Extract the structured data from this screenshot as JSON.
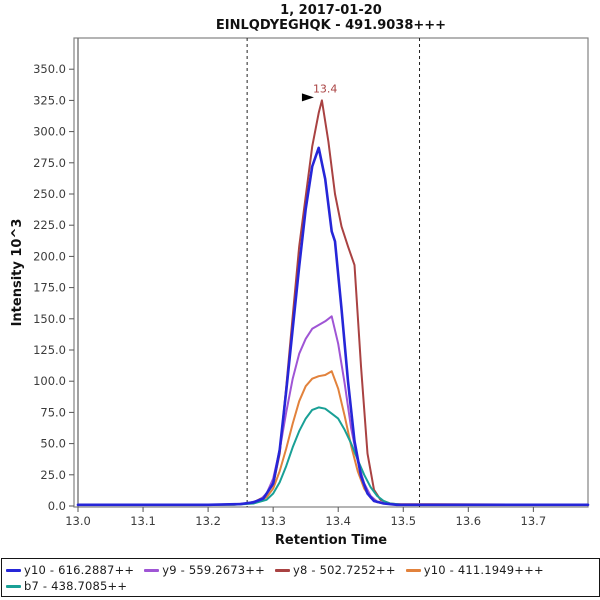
{
  "title": {
    "line1": "1, 2017-01-20",
    "line2": "EINLQDYEGHQK - 491.9038+++"
  },
  "chart_data": {
    "type": "line",
    "title": "1, 2017-01-20",
    "subtitle": "EINLQDYEGHQK - 491.9038+++",
    "xlabel": "Retention Time",
    "ylabel": "Intensity 10^3",
    "xlim": [
      13.0,
      13.784
    ],
    "ylim": [
      0,
      375
    ],
    "x_ticks": [
      13.0,
      13.1,
      13.2,
      13.3,
      13.4,
      13.5,
      13.6,
      13.7
    ],
    "y_ticks": [
      0,
      25,
      50,
      75,
      100,
      125,
      150,
      175,
      200,
      225,
      250,
      275,
      300,
      325,
      350
    ],
    "grid": false,
    "legend_position": "bottom",
    "peak_boundaries": [
      13.26,
      13.525
    ],
    "annotation": {
      "label": "13.4",
      "rt": 13.375,
      "value": 325,
      "color": "#a94242"
    },
    "series": [
      {
        "name": "y10 - 616.2887++",
        "color": "#2626d8",
        "width": 2.6,
        "points": [
          [
            13.0,
            1
          ],
          [
            13.2,
            1
          ],
          [
            13.25,
            1.5
          ],
          [
            13.27,
            3
          ],
          [
            13.285,
            6
          ],
          [
            13.3,
            18
          ],
          [
            13.31,
            45
          ],
          [
            13.32,
            92
          ],
          [
            13.33,
            142
          ],
          [
            13.34,
            192
          ],
          [
            13.35,
            238
          ],
          [
            13.36,
            272
          ],
          [
            13.37,
            287
          ],
          [
            13.38,
            262
          ],
          [
            13.39,
            220
          ],
          [
            13.395,
            212
          ],
          [
            13.405,
            158
          ],
          [
            13.415,
            100
          ],
          [
            13.425,
            52
          ],
          [
            13.435,
            24
          ],
          [
            13.445,
            10
          ],
          [
            13.455,
            4
          ],
          [
            13.47,
            2
          ],
          [
            13.49,
            1
          ],
          [
            13.55,
            1
          ],
          [
            13.784,
            1
          ]
        ]
      },
      {
        "name": "y9 - 559.2673++",
        "color": "#9f55d5",
        "width": 2,
        "points": [
          [
            13.0,
            1
          ],
          [
            13.22,
            1
          ],
          [
            13.26,
            2
          ],
          [
            13.28,
            5
          ],
          [
            13.29,
            10
          ],
          [
            13.3,
            22
          ],
          [
            13.31,
            45
          ],
          [
            13.32,
            75
          ],
          [
            13.33,
            102
          ],
          [
            13.34,
            122
          ],
          [
            13.35,
            134
          ],
          [
            13.36,
            142
          ],
          [
            13.37,
            145
          ],
          [
            13.38,
            148
          ],
          [
            13.39,
            152
          ],
          [
            13.4,
            130
          ],
          [
            13.41,
            98
          ],
          [
            13.42,
            62
          ],
          [
            13.43,
            36
          ],
          [
            13.44,
            18
          ],
          [
            13.45,
            8
          ],
          [
            13.46,
            3.5
          ],
          [
            13.48,
            1.5
          ],
          [
            13.784,
            1
          ]
        ]
      },
      {
        "name": "y8 - 502.7252++",
        "color": "#a94242",
        "width": 2,
        "points": [
          [
            13.0,
            1
          ],
          [
            13.2,
            1
          ],
          [
            13.25,
            1.5
          ],
          [
            13.27,
            3
          ],
          [
            13.285,
            7
          ],
          [
            13.3,
            17
          ],
          [
            13.31,
            42
          ],
          [
            13.32,
            95
          ],
          [
            13.33,
            152
          ],
          [
            13.34,
            208
          ],
          [
            13.35,
            248
          ],
          [
            13.36,
            288
          ],
          [
            13.37,
            315
          ],
          [
            13.375,
            325
          ],
          [
            13.385,
            292
          ],
          [
            13.395,
            250
          ],
          [
            13.405,
            224
          ],
          [
            13.415,
            208
          ],
          [
            13.425,
            193
          ],
          [
            13.435,
            112
          ],
          [
            13.445,
            42
          ],
          [
            13.455,
            13
          ],
          [
            13.465,
            5
          ],
          [
            13.48,
            2
          ],
          [
            13.5,
            1
          ],
          [
            13.784,
            1
          ]
        ]
      },
      {
        "name": "y10 - 411.1949+++",
        "color": "#e2823c",
        "width": 2,
        "points": [
          [
            13.0,
            1
          ],
          [
            13.24,
            1
          ],
          [
            13.27,
            2.5
          ],
          [
            13.29,
            7
          ],
          [
            13.3,
            14
          ],
          [
            13.31,
            28
          ],
          [
            13.32,
            46
          ],
          [
            13.33,
            66
          ],
          [
            13.34,
            84
          ],
          [
            13.35,
            96
          ],
          [
            13.36,
            102
          ],
          [
            13.37,
            104
          ],
          [
            13.38,
            105
          ],
          [
            13.39,
            108
          ],
          [
            13.4,
            94
          ],
          [
            13.41,
            72
          ],
          [
            13.42,
            48
          ],
          [
            13.43,
            28
          ],
          [
            13.44,
            14
          ],
          [
            13.45,
            6.5
          ],
          [
            13.46,
            3
          ],
          [
            13.48,
            1.5
          ],
          [
            13.784,
            1
          ]
        ]
      },
      {
        "name": "b7 - 438.7085++",
        "color": "#19a096",
        "width": 2,
        "points": [
          [
            13.0,
            1
          ],
          [
            13.24,
            1
          ],
          [
            13.27,
            2
          ],
          [
            13.29,
            5
          ],
          [
            13.3,
            10
          ],
          [
            13.31,
            19
          ],
          [
            13.32,
            32
          ],
          [
            13.33,
            47
          ],
          [
            13.34,
            60
          ],
          [
            13.35,
            70
          ],
          [
            13.36,
            77
          ],
          [
            13.37,
            79
          ],
          [
            13.38,
            78
          ],
          [
            13.39,
            74
          ],
          [
            13.4,
            70
          ],
          [
            13.41,
            61
          ],
          [
            13.42,
            50
          ],
          [
            13.43,
            37
          ],
          [
            13.44,
            25
          ],
          [
            13.45,
            15
          ],
          [
            13.46,
            8
          ],
          [
            13.47,
            4
          ],
          [
            13.48,
            2
          ],
          [
            13.5,
            1
          ],
          [
            13.784,
            1
          ]
        ]
      }
    ]
  }
}
